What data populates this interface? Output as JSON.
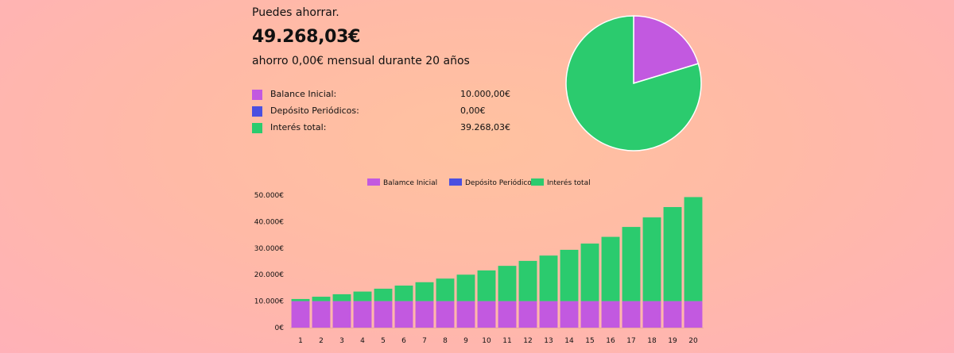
{
  "summary": {
    "kicker": "Puedes ahorrar.",
    "total": "49.268,03€",
    "subtitle": "ahorro 0,00€ mensual durante 20 años"
  },
  "breakdown": [
    {
      "label": "Balance Inicial:",
      "value": "10.000,00€",
      "color": "#c259e0"
    },
    {
      "label": "Depósito Periódicos:",
      "value": "0,00€",
      "color": "#4a4fe0"
    },
    {
      "label": "Interés total:",
      "value": "39.268,03€",
      "color": "#2bcb6e"
    }
  ],
  "chart_data": [
    {
      "type": "pie",
      "slices": [
        {
          "name": "Balance Inicial",
          "value": 10000.0,
          "color": "#c259e0"
        },
        {
          "name": "Depósito Periódicos",
          "value": 0.0,
          "color": "#4a4fe0"
        },
        {
          "name": "Interés total",
          "value": 39268.03,
          "color": "#2bcb6e"
        }
      ]
    },
    {
      "type": "bar",
      "stacked": true,
      "legend_position": "top-center",
      "categories": [
        "1",
        "2",
        "3",
        "4",
        "5",
        "6",
        "7",
        "8",
        "9",
        "10",
        "11",
        "12",
        "13",
        "14",
        "15",
        "16",
        "17",
        "18",
        "19",
        "20"
      ],
      "series": [
        {
          "name": "Balamce Inicial",
          "color": "#c259e0",
          "values": [
            10000,
            10000,
            10000,
            10000,
            10000,
            10000,
            10000,
            10000,
            10000,
            10000,
            10000,
            10000,
            10000,
            10000,
            10000,
            10000,
            10000,
            10000,
            10000,
            10000
          ]
        },
        {
          "name": "Depósito Periódicos",
          "color": "#4a4fe0",
          "values": [
            0,
            0,
            0,
            0,
            0,
            0,
            0,
            0,
            0,
            0,
            0,
            0,
            0,
            0,
            0,
            0,
            0,
            0,
            0,
            0
          ]
        },
        {
          "name": "Interés total",
          "color": "#2bcb6e",
          "values": [
            800,
            1664,
            2597,
            3605,
            4693,
            5869,
            7138,
            8509,
            9990,
            11589,
            13316,
            15181,
            17196,
            19371,
            21721,
            24258,
            27999,
            31599,
            35499,
            39268
          ]
        }
      ],
      "ylim": [
        0,
        50000
      ],
      "yticks": [
        0,
        10000,
        20000,
        30000,
        40000,
        50000
      ],
      "ytick_labels": [
        "0€",
        "10.000€",
        "20.000€",
        "30.000€",
        "40.000€",
        "50.000€"
      ],
      "grid": false
    }
  ]
}
